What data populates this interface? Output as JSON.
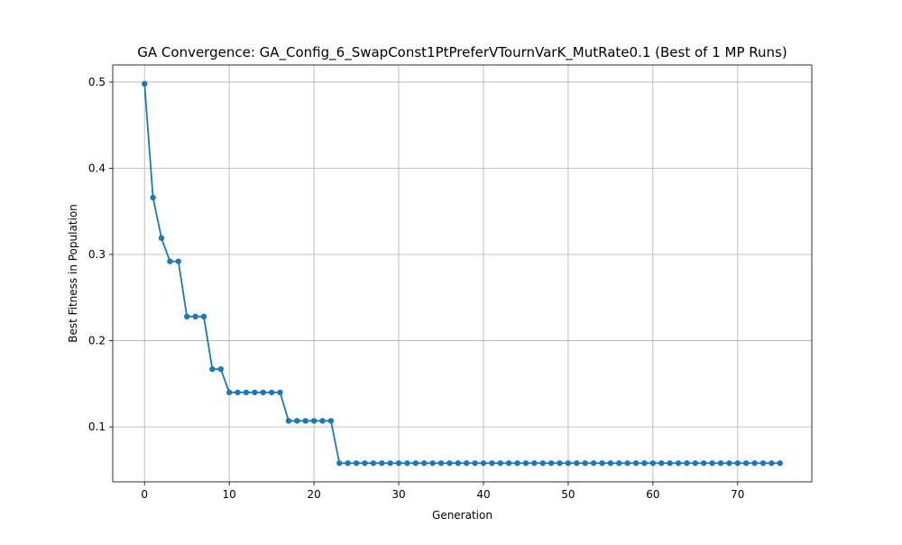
{
  "chart_data": {
    "type": "line",
    "title": "GA Convergence: GA_Config_6_SwapConst1PtPreferVTournVarK_MutRate0.1 (Best of 1 MP Runs)",
    "xlabel": "Generation",
    "ylabel": "Best Fitness in Population",
    "xlim": [
      -3.75,
      78.75
    ],
    "ylim": [
      0.0363,
      0.5198
    ],
    "xticks": [
      0,
      10,
      20,
      30,
      40,
      50,
      60,
      70
    ],
    "yticks": [
      0.1,
      0.2,
      0.3,
      0.4,
      0.5
    ],
    "ytick_labels": [
      "0.1",
      "0.2",
      "0.3",
      "0.4",
      "0.5"
    ],
    "grid": true,
    "series": [
      {
        "color": "#1f77b4",
        "x": [
          0,
          1,
          2,
          3,
          4,
          5,
          6,
          7,
          8,
          9,
          10,
          11,
          12,
          13,
          14,
          15,
          16,
          17,
          18,
          19,
          20,
          21,
          22,
          23,
          24,
          25,
          26,
          27,
          28,
          29,
          30,
          31,
          32,
          33,
          34,
          35,
          36,
          37,
          38,
          39,
          40,
          41,
          42,
          43,
          44,
          45,
          46,
          47,
          48,
          49,
          50,
          51,
          52,
          53,
          54,
          55,
          56,
          57,
          58,
          59,
          60,
          61,
          62,
          63,
          64,
          65,
          66,
          67,
          68,
          69,
          70,
          71,
          72,
          73,
          74,
          75
        ],
        "values": [
          0.498,
          0.366,
          0.319,
          0.292,
          0.292,
          0.228,
          0.228,
          0.228,
          0.167,
          0.167,
          0.14,
          0.14,
          0.14,
          0.14,
          0.14,
          0.14,
          0.14,
          0.107,
          0.107,
          0.107,
          0.107,
          0.107,
          0.107,
          0.058,
          0.058,
          0.058,
          0.058,
          0.058,
          0.058,
          0.058,
          0.058,
          0.058,
          0.058,
          0.058,
          0.058,
          0.058,
          0.058,
          0.058,
          0.058,
          0.058,
          0.058,
          0.058,
          0.058,
          0.058,
          0.058,
          0.058,
          0.058,
          0.058,
          0.058,
          0.058,
          0.058,
          0.058,
          0.058,
          0.058,
          0.058,
          0.058,
          0.058,
          0.058,
          0.058,
          0.058,
          0.058,
          0.058,
          0.058,
          0.058,
          0.058,
          0.058,
          0.058,
          0.058,
          0.058,
          0.058,
          0.058,
          0.058,
          0.058,
          0.058,
          0.058,
          0.058
        ]
      }
    ]
  }
}
